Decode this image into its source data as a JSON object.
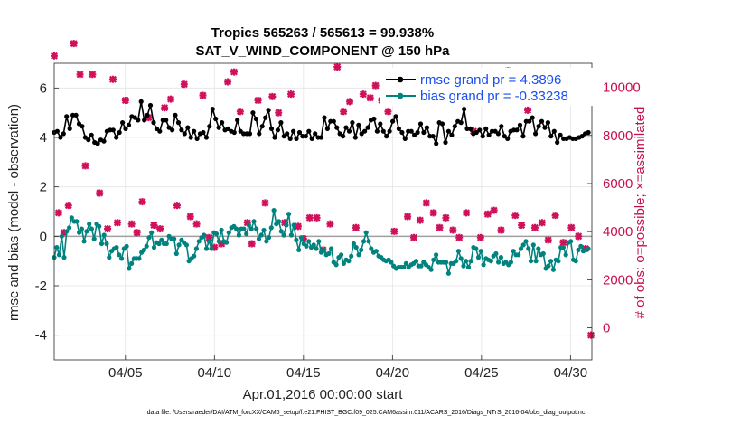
{
  "chart_data": {
    "type": "line",
    "title": "Tropics 565263 / 565613 = 99.938%",
    "subtitle": "SAT_V_WIND_COMPONENT @ 150 hPa",
    "xlabel": "Apr.01,2016 00:00:00 start",
    "ylabel": "rmse and bias (model - observation)",
    "ylabel_right": "# of obs: o=possible; ×=assimilated",
    "footer": "data file: /Users/raeder/DAI/ATM_forcXX/CAM6_setup/f.e21.FHIST_BGC.f09_025.CAM6assim.011/ACARS_2016/Diags_NTrS_2016-04/obs_diag_output.nc",
    "xlim": [
      1,
      31.2
    ],
    "ylim": [
      -5,
      7
    ],
    "ylim_right": [
      -1333,
      11000
    ],
    "x_ticks": [
      5,
      10,
      15,
      20,
      25,
      30
    ],
    "x_tick_labels": [
      "04/05",
      "04/10",
      "04/15",
      "04/20",
      "04/25",
      "04/30"
    ],
    "y_ticks": [
      -4,
      -2,
      0,
      2,
      4,
      6
    ],
    "y_right_ticks": [
      0,
      2000,
      4000,
      6000,
      8000,
      10000
    ],
    "grid": true,
    "legend": [
      {
        "label": "rmse grand pr = 4.3896",
        "color": "#000000"
      },
      {
        "label": "bias grand pr = -0.33238",
        "color": "#00837f"
      }
    ],
    "colors": {
      "rmse": "#000000",
      "bias": "#00837f",
      "obs": "#d0105a",
      "zero_line": "#a0a0a0"
    },
    "rmse": [
      4.2,
      4.25,
      4.0,
      4.15,
      4.85,
      4.35,
      4.9,
      4.9,
      4.55,
      4.45,
      4.0,
      3.9,
      4.1,
      3.8,
      3.75,
      3.9,
      3.85,
      4.25,
      4.3,
      4.3,
      4.0,
      4.2,
      4.6,
      4.35,
      4.5,
      4.85,
      4.8,
      4.7,
      5.45,
      4.7,
      4.9,
      5.3,
      4.6,
      4.35,
      4.25,
      4.7,
      4.7,
      4.4,
      4.3,
      4.9,
      4.6,
      4.3,
      4.15,
      4.4,
      4.0,
      4.25,
      3.95,
      4.15,
      4.2,
      4.0,
      4.45,
      5.15,
      4.75,
      4.4,
      4.6,
      4.3,
      4.35,
      4.25,
      4.2,
      4.7,
      4.25,
      4.15,
      4.15,
      4.15,
      5.0,
      4.75,
      4.15,
      4.45,
      4.8,
      5.1,
      4.35,
      4.0,
      4.3,
      4.6,
      4.05,
      4.15,
      3.95,
      4.25,
      3.95,
      4.2,
      4.05,
      4.05,
      4.25,
      3.95,
      4.15,
      4.0,
      4.0,
      4.8,
      4.35,
      4.65,
      4.65,
      4.4,
      4.15,
      4.05,
      4.4,
      4.25,
      4.6,
      4.0,
      4.5,
      4.15,
      4.25,
      4.4,
      4.7,
      4.75,
      4.25,
      4.55,
      4.25,
      4.05,
      4.25,
      4.65,
      4.85,
      4.35,
      4.2,
      3.95,
      4.25,
      4.25,
      4.1,
      4.2,
      4.55,
      4.2,
      4.4,
      4.05,
      4.05,
      3.75,
      4.6,
      4.55,
      3.8,
      4.25,
      4.1,
      4.45,
      4.65,
      4.6,
      5.15,
      4.35,
      4.35,
      4.15,
      4.2,
      4.3,
      4.05,
      4.35,
      4.1,
      4.25,
      4.25,
      4.15,
      4.45,
      4.05,
      3.95,
      4.25,
      4.3,
      4.3,
      4.5,
      4.05,
      4.65,
      4.65,
      4.8,
      4.15,
      4.45,
      4.65,
      4.4,
      4.6,
      4.05,
      4.25,
      3.8,
      4.1,
      3.95,
      3.95,
      4.0,
      3.95,
      3.95,
      4.0,
      4.05,
      4.15,
      4.2
    ],
    "bias": [
      -0.85,
      -0.45,
      -0.75,
      0.0,
      -0.85,
      0.2,
      0.35,
      0.75,
      0.6,
      0.6,
      0.15,
      0.3,
      -0.2,
      0.2,
      0.5,
      0.3,
      -0.1,
      0.5,
      0.4,
      -0.3,
      0.05,
      -0.3,
      -0.85,
      -0.6,
      -0.5,
      -0.45,
      -0.75,
      -0.9,
      -0.5,
      -0.4,
      -1.3,
      -1.1,
      -0.9,
      -0.9,
      -0.9,
      -0.65,
      -0.55,
      -0.4,
      -0.05,
      0.15,
      -0.45,
      -0.25,
      -0.3,
      -0.15,
      -0.3,
      -0.3,
      0.0,
      -0.1,
      -0.1,
      -0.7,
      -0.35,
      -0.15,
      -0.25,
      -0.35,
      -1.0,
      -0.9,
      -0.8,
      -0.5,
      -0.2,
      -0.05,
      0.05,
      -0.5,
      -0.2,
      -0.5,
      0.15,
      0.1,
      -0.2,
      0.25,
      -0.2,
      -0.25,
      0.15,
      0.35,
      0.4,
      0.3,
      0.05,
      0.3,
      0.3,
      0.1,
      0.45,
      0.3,
      0.6,
      0.3,
      -0.1,
      0.05,
      0.25,
      -0.2,
      -0.05,
      0.35,
      1.05,
      0.5,
      0.6,
      0.2,
      0.05,
      0.45,
      0.9,
      0.05,
      0.45,
      -0.15,
      -0.55,
      -0.05,
      -0.3,
      -0.4,
      -0.2,
      -0.45,
      -0.35,
      -0.5,
      -0.2,
      -0.65,
      -0.55,
      -0.75,
      -0.7,
      -0.5,
      -1.05,
      -1.15,
      -0.85,
      -0.75,
      -1.1,
      -0.95,
      -1.0,
      -0.8,
      -0.3,
      -0.45,
      -0.75,
      -0.55,
      -0.2,
      0.15,
      -0.2,
      -0.5,
      -0.65,
      -0.6,
      -0.8,
      -0.85,
      -0.95,
      -1.0,
      -0.95,
      -1.05,
      -1.2,
      -1.3,
      -1.25,
      -1.25,
      -1.25,
      -1.1,
      -1.25,
      -1.15,
      -1.1,
      -1.0,
      -1.2,
      -1.2,
      -1.05,
      -1.15,
      -1.25,
      -1.35,
      -0.95,
      -0.75,
      -1.05,
      -1.05,
      -1.05,
      -1.05,
      -1.5,
      -1.1,
      -1.1,
      -1.0,
      -0.6,
      -0.9,
      -1.2,
      -1.0,
      -1.25,
      -1.0,
      -0.45,
      -0.5,
      -0.85,
      -0.6,
      -1.15,
      -0.9,
      -0.95,
      -1.0,
      -0.8,
      -0.7,
      -1.05,
      -0.85,
      -1.1,
      -1.05,
      -1.15,
      -1.05,
      -0.6,
      -0.75,
      -0.75,
      -0.5,
      -0.35,
      -0.2,
      -0.5,
      -1.0,
      -0.35,
      -1.0,
      -0.5,
      -0.75,
      -0.7,
      -1.3,
      -1.2,
      -1.0,
      -1.35,
      -0.95,
      -1.0,
      -0.45,
      -0.45,
      -0.75,
      -0.25,
      -0.2,
      -0.95,
      -1.0,
      -0.55,
      -0.4,
      -0.6,
      -0.55,
      -0.5
    ],
    "obs_points": [
      [
        1.0,
        7.3
      ],
      [
        1.25,
        0.95
      ],
      [
        1.55,
        0.15
      ],
      [
        1.8,
        1.25
      ],
      [
        2.1,
        7.8
      ],
      [
        2.45,
        6.55
      ],
      [
        2.75,
        2.85
      ],
      [
        3.15,
        6.55
      ],
      [
        3.55,
        1.75
      ],
      [
        4.0,
        0.3
      ],
      [
        4.3,
        6.35
      ],
      [
        4.55,
        0.55
      ],
      [
        5.0,
        5.5
      ],
      [
        5.35,
        0.5
      ],
      [
        5.65,
        0.15
      ],
      [
        5.95,
        1.4
      ],
      [
        6.3,
        4.8
      ],
      [
        6.6,
        0.45
      ],
      [
        6.95,
        0.3
      ],
      [
        7.2,
        5.2
      ],
      [
        7.55,
        5.55
      ],
      [
        7.9,
        1.25
      ],
      [
        8.3,
        6.15
      ],
      [
        8.65,
        0.8
      ],
      [
        9.0,
        0.5
      ],
      [
        9.35,
        5.7
      ],
      [
        9.7,
        -0.05
      ],
      [
        10.0,
        -0.45
      ],
      [
        10.4,
        -0.3
      ],
      [
        10.75,
        6.25
      ],
      [
        11.1,
        6.65
      ],
      [
        11.45,
        5.05
      ],
      [
        11.85,
        0.55
      ],
      [
        12.1,
        -0.3
      ],
      [
        12.45,
        5.5
      ],
      [
        12.85,
        1.35
      ],
      [
        13.25,
        5.65
      ],
      [
        13.6,
        5.0
      ],
      [
        13.95,
        0.55
      ],
      [
        14.3,
        5.75
      ],
      [
        14.7,
        0.4
      ],
      [
        15.0,
        -0.1
      ],
      [
        15.35,
        0.75
      ],
      [
        15.75,
        0.75
      ],
      [
        16.1,
        -0.55
      ],
      [
        16.5,
        0.5
      ],
      [
        16.9,
        6.85
      ],
      [
        17.25,
        5.05
      ],
      [
        17.6,
        5.45
      ],
      [
        17.95,
        0.35
      ],
      [
        18.35,
        5.75
      ],
      [
        18.75,
        5.6
      ],
      [
        19.05,
        6.1
      ],
      [
        19.4,
        5.5
      ],
      [
        19.75,
        5.05
      ],
      [
        20.1,
        0.2
      ],
      [
        20.45,
        5.95
      ],
      [
        20.85,
        0.8
      ],
      [
        21.2,
        -0.05
      ],
      [
        21.55,
        0.65
      ],
      [
        21.9,
        1.35
      ],
      [
        22.3,
        0.95
      ],
      [
        22.65,
        0.35
      ],
      [
        23.0,
        0.75
      ],
      [
        23.4,
        0.25
      ],
      [
        23.75,
        -0.05
      ],
      [
        24.15,
        0.95
      ],
      [
        24.55,
        4.25
      ],
      [
        24.95,
        -0.05
      ],
      [
        25.35,
        0.9
      ],
      [
        25.7,
        1.05
      ],
      [
        26.1,
        0.25
      ],
      [
        26.5,
        6.7
      ],
      [
        26.9,
        0.85
      ],
      [
        27.25,
        0.45
      ],
      [
        27.6,
        5.1
      ],
      [
        28.0,
        0.35
      ],
      [
        28.4,
        0.55
      ],
      [
        28.75,
        -0.15
      ],
      [
        29.15,
        0.85
      ],
      [
        29.6,
        -0.25
      ],
      [
        30.05,
        0.35
      ],
      [
        30.45,
        0.0
      ],
      [
        30.85,
        -0.5
      ],
      [
        31.15,
        -4.0
      ]
    ]
  }
}
